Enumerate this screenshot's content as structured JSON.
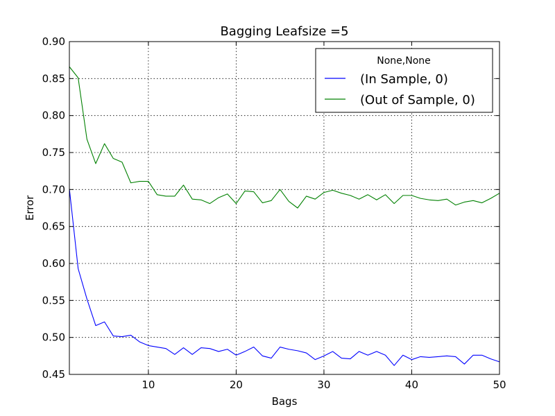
{
  "chart_data": {
    "type": "line",
    "title": "Bagging Leafsize =5",
    "xlabel": "Bags",
    "ylabel": "Error",
    "xlim": [
      1,
      50
    ],
    "ylim": [
      0.45,
      0.9
    ],
    "xticks": [
      10,
      20,
      30,
      40,
      50
    ],
    "yticks": [
      0.45,
      0.5,
      0.55,
      0.6,
      0.65,
      0.7,
      0.75,
      0.8,
      0.85,
      0.9
    ],
    "xtick_labels": [
      "10",
      "20",
      "30",
      "40",
      "50"
    ],
    "ytick_labels": [
      "0.45",
      "0.50",
      "0.55",
      "0.60",
      "0.65",
      "0.70",
      "0.75",
      "0.80",
      "0.85",
      "0.90"
    ],
    "grid": true,
    "legend": {
      "title": "None,None",
      "placement": "upper right"
    },
    "x": [
      1,
      2,
      3,
      4,
      5,
      6,
      7,
      8,
      9,
      10,
      11,
      12,
      13,
      14,
      15,
      16,
      17,
      18,
      19,
      20,
      21,
      22,
      23,
      24,
      25,
      26,
      27,
      28,
      29,
      30,
      31,
      32,
      33,
      34,
      35,
      36,
      37,
      38,
      39,
      40,
      41,
      42,
      43,
      44,
      45,
      46,
      47,
      48,
      49,
      50
    ],
    "series": [
      {
        "name": "(In Sample, 0)",
        "color": "#0000ff",
        "values": [
          0.701,
          0.593,
          0.552,
          0.516,
          0.521,
          0.502,
          0.501,
          0.503,
          0.494,
          0.489,
          0.487,
          0.485,
          0.477,
          0.486,
          0.477,
          0.486,
          0.485,
          0.481,
          0.484,
          0.476,
          0.481,
          0.487,
          0.475,
          0.472,
          0.487,
          0.484,
          0.482,
          0.479,
          0.47,
          0.475,
          0.481,
          0.472,
          0.471,
          0.481,
          0.476,
          0.481,
          0.476,
          0.462,
          0.476,
          0.47,
          0.474,
          0.473,
          0.474,
          0.475,
          0.474,
          0.464,
          0.476,
          0.476,
          0.471,
          0.467
        ]
      },
      {
        "name": "(Out of Sample, 0)",
        "color": "#008000",
        "values": [
          0.866,
          0.851,
          0.768,
          0.735,
          0.762,
          0.742,
          0.737,
          0.709,
          0.711,
          0.711,
          0.693,
          0.691,
          0.691,
          0.706,
          0.687,
          0.686,
          0.681,
          0.689,
          0.694,
          0.681,
          0.698,
          0.697,
          0.682,
          0.685,
          0.7,
          0.684,
          0.675,
          0.691,
          0.687,
          0.696,
          0.699,
          0.695,
          0.692,
          0.687,
          0.693,
          0.686,
          0.693,
          0.681,
          0.692,
          0.692,
          0.688,
          0.686,
          0.685,
          0.687,
          0.679,
          0.683,
          0.685,
          0.682,
          0.688,
          0.695
        ]
      }
    ]
  }
}
